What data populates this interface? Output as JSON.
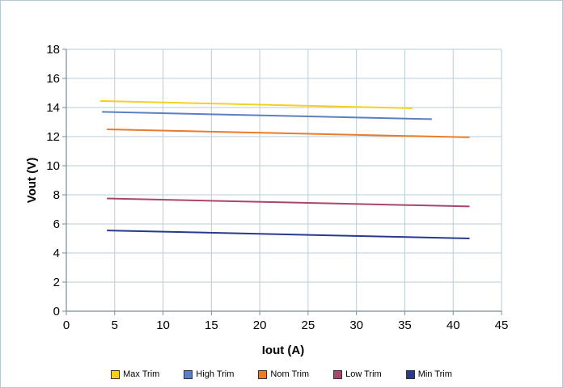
{
  "chart_data": {
    "type": "line",
    "xlabel": "Iout (A)",
    "ylabel": "Vout (V)",
    "xlim": [
      0,
      45
    ],
    "ylim": [
      0,
      18
    ],
    "x_ticks": [
      0,
      5,
      10,
      15,
      20,
      25,
      30,
      35,
      40,
      45
    ],
    "y_ticks": [
      0,
      2,
      4,
      6,
      8,
      10,
      12,
      14,
      16,
      18
    ],
    "grid": true,
    "legend_position": "bottom",
    "series": [
      {
        "name": "Max Trim",
        "color": "#f5d020",
        "x": [
          3.5,
          35.8
        ],
        "y": [
          14.45,
          13.95
        ]
      },
      {
        "name": "High Trim",
        "color": "#5b7fc4",
        "x": [
          3.7,
          37.8
        ],
        "y": [
          13.7,
          13.2
        ]
      },
      {
        "name": "Nom Trim",
        "color": "#ea7b2b",
        "x": [
          4.2,
          41.7
        ],
        "y": [
          12.5,
          11.95
        ]
      },
      {
        "name": "Low Trim",
        "color": "#a9466e",
        "x": [
          4.2,
          41.7
        ],
        "y": [
          7.75,
          7.2
        ]
      },
      {
        "name": "Min Trim",
        "color": "#283a8e",
        "x": [
          4.2,
          41.7
        ],
        "y": [
          5.55,
          5.0
        ]
      }
    ]
  }
}
